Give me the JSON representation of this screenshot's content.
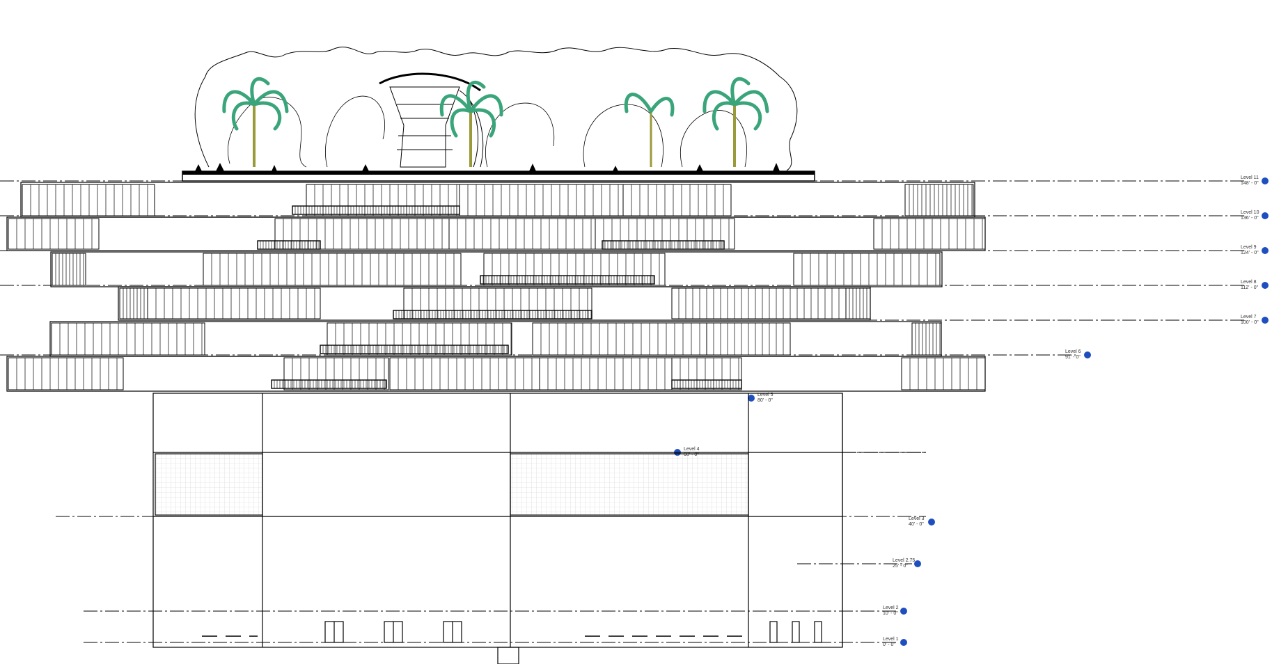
{
  "drawing": {
    "colors": {
      "line": "#000000",
      "level_marker": "#1f4fbf",
      "palm": "#3aa57a",
      "trunk": "#9a9a3a",
      "grid": "#c8c8c8"
    },
    "levels": [
      {
        "name": "Level 11",
        "elevation": "148' - 0\""
      },
      {
        "name": "Level 10",
        "elevation": "136' - 0\""
      },
      {
        "name": "Level 9",
        "elevation": "124' - 0\""
      },
      {
        "name": "Level 8",
        "elevation": "112' - 0\""
      },
      {
        "name": "Level 7",
        "elevation": "100' - 0\""
      },
      {
        "name": "Level 6",
        "elevation": "91' - 0\""
      },
      {
        "name": "Level 5",
        "elevation": "80' - 0\""
      },
      {
        "name": "Level 4",
        "elevation": "60' - 0\""
      },
      {
        "name": "Level 3",
        "elevation": "40' - 0\""
      },
      {
        "name": "Level 2.75",
        "elevation": "25' - 0\""
      },
      {
        "name": "Level 2",
        "elevation": "10' - 0\""
      },
      {
        "name": "Level 1",
        "elevation": "0' - 0\""
      }
    ]
  }
}
